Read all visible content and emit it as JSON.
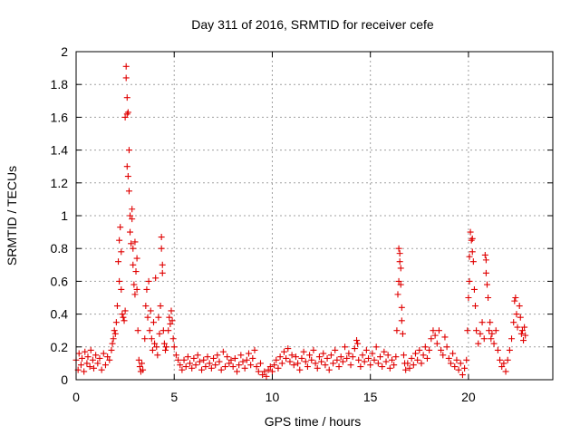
{
  "chart_data": {
    "type": "scatter",
    "title": "Day 311 of 2016, SRMTID for receiver cefe",
    "xlabel": "GPS time / hours",
    "ylabel": "SRMTID / TECUs",
    "xlim": [
      0,
      24.3
    ],
    "ylim": [
      0,
      2
    ],
    "xticks": [
      "0",
      "5",
      "10",
      "15",
      "20"
    ],
    "yticks": [
      "0",
      "0.2",
      "0.4",
      "0.6",
      "0.8",
      "1",
      "1.2",
      "1.4",
      "1.6",
      "1.8",
      "2"
    ],
    "grid": true,
    "marker": "+",
    "color": "#e00000",
    "series": [
      {
        "name": "SRMTID",
        "points": [
          [
            0.0,
            0.12
          ],
          [
            0.1,
            0.06
          ],
          [
            0.15,
            0.16
          ],
          [
            0.25,
            0.09
          ],
          [
            0.3,
            0.13
          ],
          [
            0.4,
            0.05
          ],
          [
            0.45,
            0.17
          ],
          [
            0.55,
            0.1
          ],
          [
            0.6,
            0.14
          ],
          [
            0.7,
            0.08
          ],
          [
            0.75,
            0.18
          ],
          [
            0.85,
            0.12
          ],
          [
            0.9,
            0.07
          ],
          [
            1.0,
            0.15
          ],
          [
            1.1,
            0.1
          ],
          [
            1.2,
            0.13
          ],
          [
            1.3,
            0.06
          ],
          [
            1.4,
            0.16
          ],
          [
            1.5,
            0.09
          ],
          [
            1.6,
            0.14
          ],
          [
            1.7,
            0.12
          ],
          [
            1.8,
            0.18
          ],
          [
            1.85,
            0.22
          ],
          [
            1.9,
            0.25
          ],
          [
            1.95,
            0.3
          ],
          [
            2.0,
            0.28
          ],
          [
            2.05,
            0.35
          ],
          [
            2.1,
            0.45
          ],
          [
            2.15,
            0.72
          ],
          [
            2.2,
            0.6
          ],
          [
            2.2,
            0.85
          ],
          [
            2.25,
            0.93
          ],
          [
            2.3,
            0.55
          ],
          [
            2.3,
            0.78
          ],
          [
            2.35,
            0.4
          ],
          [
            2.4,
            0.38
          ],
          [
            2.45,
            0.36
          ],
          [
            2.5,
            0.42
          ],
          [
            2.5,
            1.6
          ],
          [
            2.55,
            1.91
          ],
          [
            2.55,
            1.84
          ],
          [
            2.6,
            1.72
          ],
          [
            2.6,
            1.3
          ],
          [
            2.6,
            1.62
          ],
          [
            2.65,
            1.24
          ],
          [
            2.65,
            1.63
          ],
          [
            2.7,
            1.4
          ],
          [
            2.7,
            1.15
          ],
          [
            2.75,
            1.0
          ],
          [
            2.75,
            0.9
          ],
          [
            2.8,
            0.83
          ],
          [
            2.85,
            0.98
          ],
          [
            2.85,
            1.04
          ],
          [
            2.9,
            0.8
          ],
          [
            2.9,
            0.7
          ],
          [
            2.95,
            0.58
          ],
          [
            3.0,
            0.52
          ],
          [
            3.0,
            0.84
          ],
          [
            3.05,
            0.66
          ],
          [
            3.1,
            0.74
          ],
          [
            3.1,
            0.55
          ],
          [
            3.15,
            0.3
          ],
          [
            3.2,
            0.12
          ],
          [
            3.25,
            0.08
          ],
          [
            3.3,
            0.05
          ],
          [
            3.35,
            0.1
          ],
          [
            3.4,
            0.06
          ],
          [
            3.5,
            0.25
          ],
          [
            3.55,
            0.45
          ],
          [
            3.6,
            0.55
          ],
          [
            3.65,
            0.38
          ],
          [
            3.7,
            0.6
          ],
          [
            3.75,
            0.3
          ],
          [
            3.8,
            0.42
          ],
          [
            3.85,
            0.25
          ],
          [
            3.9,
            0.18
          ],
          [
            3.95,
            0.35
          ],
          [
            4.0,
            0.22
          ],
          [
            4.05,
            0.62
          ],
          [
            4.1,
            0.2
          ],
          [
            4.15,
            0.15
          ],
          [
            4.2,
            0.38
          ],
          [
            4.25,
            0.28
          ],
          [
            4.3,
            0.45
          ],
          [
            4.35,
            0.87
          ],
          [
            4.35,
            0.8
          ],
          [
            4.4,
            0.7
          ],
          [
            4.4,
            0.65
          ],
          [
            4.45,
            0.3
          ],
          [
            4.5,
            0.22
          ],
          [
            4.55,
            0.18
          ],
          [
            4.6,
            0.2
          ],
          [
            4.7,
            0.3
          ],
          [
            4.75,
            0.38
          ],
          [
            4.8,
            0.34
          ],
          [
            4.85,
            0.42
          ],
          [
            4.9,
            0.36
          ],
          [
            4.95,
            0.25
          ],
          [
            5.0,
            0.2
          ],
          [
            5.1,
            0.15
          ],
          [
            5.2,
            0.12
          ],
          [
            5.3,
            0.09
          ],
          [
            5.4,
            0.06
          ],
          [
            5.5,
            0.12
          ],
          [
            5.6,
            0.08
          ],
          [
            5.7,
            0.14
          ],
          [
            5.8,
            0.1
          ],
          [
            5.9,
            0.07
          ],
          [
            6.0,
            0.13
          ],
          [
            6.1,
            0.09
          ],
          [
            6.2,
            0.15
          ],
          [
            6.3,
            0.11
          ],
          [
            6.4,
            0.06
          ],
          [
            6.5,
            0.12
          ],
          [
            6.6,
            0.08
          ],
          [
            6.7,
            0.14
          ],
          [
            6.8,
            0.1
          ],
          [
            6.9,
            0.07
          ],
          [
            7.0,
            0.13
          ],
          [
            7.1,
            0.09
          ],
          [
            7.2,
            0.15
          ],
          [
            7.3,
            0.11
          ],
          [
            7.4,
            0.06
          ],
          [
            7.5,
            0.17
          ],
          [
            7.6,
            0.08
          ],
          [
            7.7,
            0.14
          ],
          [
            7.8,
            0.1
          ],
          [
            7.9,
            0.12
          ],
          [
            8.0,
            0.08
          ],
          [
            8.1,
            0.13
          ],
          [
            8.2,
            0.05
          ],
          [
            8.3,
            0.09
          ],
          [
            8.4,
            0.15
          ],
          [
            8.5,
            0.11
          ],
          [
            8.6,
            0.07
          ],
          [
            8.7,
            0.12
          ],
          [
            8.8,
            0.16
          ],
          [
            8.9,
            0.09
          ],
          [
            9.0,
            0.13
          ],
          [
            9.1,
            0.18
          ],
          [
            9.2,
            0.08
          ],
          [
            9.3,
            0.05
          ],
          [
            9.4,
            0.1
          ],
          [
            9.5,
            0.03
          ],
          [
            9.6,
            0.05
          ],
          [
            9.7,
            0.02
          ],
          [
            9.8,
            0.06
          ],
          [
            9.9,
            0.08
          ],
          [
            10.0,
            0.05
          ],
          [
            10.1,
            0.09
          ],
          [
            10.2,
            0.12
          ],
          [
            10.3,
            0.07
          ],
          [
            10.4,
            0.14
          ],
          [
            10.5,
            0.1
          ],
          [
            10.6,
            0.17
          ],
          [
            10.7,
            0.13
          ],
          [
            10.8,
            0.19
          ],
          [
            10.9,
            0.11
          ],
          [
            11.0,
            0.15
          ],
          [
            11.1,
            0.09
          ],
          [
            11.2,
            0.14
          ],
          [
            11.3,
            0.1
          ],
          [
            11.4,
            0.06
          ],
          [
            11.5,
            0.13
          ],
          [
            11.6,
            0.17
          ],
          [
            11.7,
            0.11
          ],
          [
            11.8,
            0.08
          ],
          [
            11.9,
            0.15
          ],
          [
            12.0,
            0.12
          ],
          [
            12.1,
            0.18
          ],
          [
            12.2,
            0.1
          ],
          [
            12.3,
            0.07
          ],
          [
            12.4,
            0.14
          ],
          [
            12.5,
            0.11
          ],
          [
            12.6,
            0.16
          ],
          [
            12.7,
            0.09
          ],
          [
            12.8,
            0.13
          ],
          [
            12.9,
            0.06
          ],
          [
            13.0,
            0.15
          ],
          [
            13.1,
            0.1
          ],
          [
            13.2,
            0.18
          ],
          [
            13.3,
            0.12
          ],
          [
            13.4,
            0.08
          ],
          [
            13.5,
            0.14
          ],
          [
            13.6,
            0.11
          ],
          [
            13.7,
            0.2
          ],
          [
            13.8,
            0.13
          ],
          [
            13.9,
            0.16
          ],
          [
            14.0,
            0.09
          ],
          [
            14.1,
            0.14
          ],
          [
            14.2,
            0.19
          ],
          [
            14.3,
            0.24
          ],
          [
            14.35,
            0.22
          ],
          [
            14.4,
            0.12
          ],
          [
            14.5,
            0.08
          ],
          [
            14.6,
            0.15
          ],
          [
            14.7,
            0.11
          ],
          [
            14.8,
            0.18
          ],
          [
            14.9,
            0.13
          ],
          [
            15.0,
            0.09
          ],
          [
            15.1,
            0.16
          ],
          [
            15.2,
            0.12
          ],
          [
            15.3,
            0.2
          ],
          [
            15.4,
            0.1
          ],
          [
            15.5,
            0.14
          ],
          [
            15.6,
            0.08
          ],
          [
            15.7,
            0.17
          ],
          [
            15.8,
            0.11
          ],
          [
            15.9,
            0.15
          ],
          [
            16.0,
            0.07
          ],
          [
            16.1,
            0.12
          ],
          [
            16.2,
            0.09
          ],
          [
            16.3,
            0.14
          ],
          [
            16.35,
            0.3
          ],
          [
            16.4,
            0.52
          ],
          [
            16.45,
            0.6
          ],
          [
            16.45,
            0.8
          ],
          [
            16.5,
            0.77
          ],
          [
            16.5,
            0.72
          ],
          [
            16.55,
            0.68
          ],
          [
            16.55,
            0.58
          ],
          [
            16.6,
            0.44
          ],
          [
            16.6,
            0.36
          ],
          [
            16.65,
            0.28
          ],
          [
            16.7,
            0.15
          ],
          [
            16.75,
            0.1
          ],
          [
            16.8,
            0.06
          ],
          [
            16.9,
            0.1
          ],
          [
            17.0,
            0.07
          ],
          [
            17.1,
            0.13
          ],
          [
            17.2,
            0.09
          ],
          [
            17.3,
            0.16
          ],
          [
            17.4,
            0.12
          ],
          [
            17.5,
            0.18
          ],
          [
            17.6,
            0.1
          ],
          [
            17.7,
            0.15
          ],
          [
            17.8,
            0.2
          ],
          [
            17.9,
            0.13
          ],
          [
            18.0,
            0.18
          ],
          [
            18.1,
            0.25
          ],
          [
            18.2,
            0.3
          ],
          [
            18.3,
            0.27
          ],
          [
            18.4,
            0.22
          ],
          [
            18.5,
            0.3
          ],
          [
            18.6,
            0.18
          ],
          [
            18.7,
            0.15
          ],
          [
            18.8,
            0.26
          ],
          [
            18.9,
            0.2
          ],
          [
            19.0,
            0.13
          ],
          [
            19.1,
            0.1
          ],
          [
            19.2,
            0.16
          ],
          [
            19.3,
            0.08
          ],
          [
            19.4,
            0.12
          ],
          [
            19.5,
            0.06
          ],
          [
            19.6,
            0.1
          ],
          [
            19.7,
            0.03
          ],
          [
            19.8,
            0.07
          ],
          [
            19.9,
            0.12
          ],
          [
            19.95,
            0.3
          ],
          [
            20.0,
            0.5
          ],
          [
            20.05,
            0.6
          ],
          [
            20.05,
            0.75
          ],
          [
            20.1,
            0.9
          ],
          [
            20.15,
            0.85
          ],
          [
            20.2,
            0.86
          ],
          [
            20.2,
            0.78
          ],
          [
            20.25,
            0.72
          ],
          [
            20.3,
            0.55
          ],
          [
            20.35,
            0.45
          ],
          [
            20.4,
            0.3
          ],
          [
            20.5,
            0.22
          ],
          [
            20.6,
            0.28
          ],
          [
            20.7,
            0.35
          ],
          [
            20.8,
            0.25
          ],
          [
            20.85,
            0.76
          ],
          [
            20.9,
            0.73
          ],
          [
            20.9,
            0.65
          ],
          [
            20.95,
            0.58
          ],
          [
            21.0,
            0.5
          ],
          [
            21.05,
            0.3
          ],
          [
            21.1,
            0.35
          ],
          [
            21.15,
            0.25
          ],
          [
            21.2,
            0.28
          ],
          [
            21.3,
            0.22
          ],
          [
            21.4,
            0.3
          ],
          [
            21.5,
            0.18
          ],
          [
            21.6,
            0.12
          ],
          [
            21.7,
            0.08
          ],
          [
            21.8,
            0.1
          ],
          [
            21.9,
            0.05
          ],
          [
            22.0,
            0.12
          ],
          [
            22.1,
            0.18
          ],
          [
            22.2,
            0.25
          ],
          [
            22.3,
            0.35
          ],
          [
            22.35,
            0.48
          ],
          [
            22.4,
            0.5
          ],
          [
            22.45,
            0.4
          ],
          [
            22.5,
            0.32
          ],
          [
            22.6,
            0.45
          ],
          [
            22.65,
            0.38
          ],
          [
            22.7,
            0.28
          ],
          [
            22.75,
            0.3
          ],
          [
            22.8,
            0.24
          ],
          [
            22.85,
            0.32
          ],
          [
            22.9,
            0.27
          ]
        ]
      }
    ]
  }
}
